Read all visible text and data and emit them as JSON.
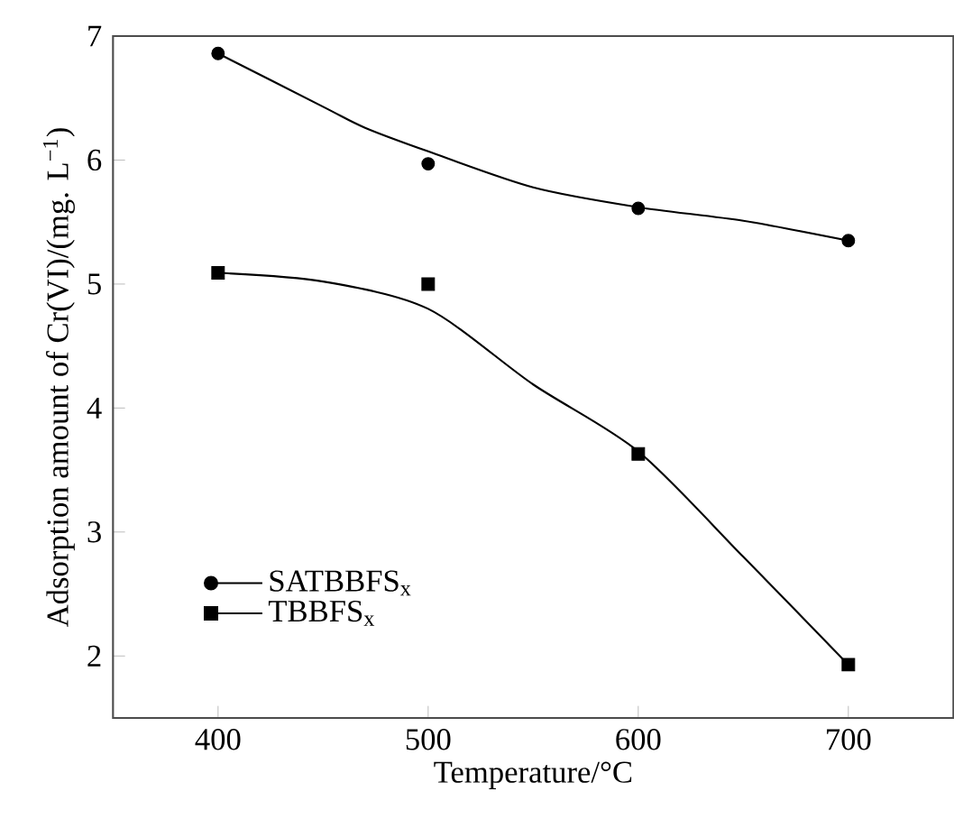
{
  "chart_data": {
    "type": "scatter",
    "xlabel": "Temperature/°C",
    "ylabel": "Adsorption amount of Cr(VI)/(mg. L$^{−1}$)",
    "xlim": [
      350,
      750
    ],
    "xticks": [
      400,
      500,
      600,
      700
    ],
    "ylim": [
      1.5,
      7
    ],
    "yticks": [
      2,
      3,
      4,
      5,
      6,
      7
    ],
    "legend": "bottom left",
    "grid": false,
    "series": [
      {
        "name": "SATBBFS$_{x}$",
        "marker": "circle",
        "color": "#000000",
        "x": [
          400,
          500,
          600,
          700
        ],
        "values": [
          6.86,
          5.97,
          5.61,
          5.35
        ]
      },
      {
        "name": "TBBFS$_{x}$",
        "marker": "square",
        "color": "#000000",
        "x": [
          400,
          500,
          600,
          700
        ],
        "values": [
          5.09,
          5.0,
          3.63,
          1.93
        ]
      },
      {
        "type": "line",
        "marker": "none",
        "color": "#000000",
        "x": [
          400,
          450,
          470,
          500,
          550,
          600,
          650,
          700
        ],
        "values": [
          6.86,
          6.43,
          6.26,
          6.07,
          5.78,
          5.62,
          5.51,
          5.35
        ]
      },
      {
        "type": "line",
        "marker": "none",
        "color": "#000000",
        "x": [
          400,
          450,
          500,
          550,
          600,
          650,
          700
        ],
        "values": [
          5.09,
          5.02,
          4.8,
          4.19,
          3.65,
          2.8,
          1.93
        ]
      }
    ]
  }
}
